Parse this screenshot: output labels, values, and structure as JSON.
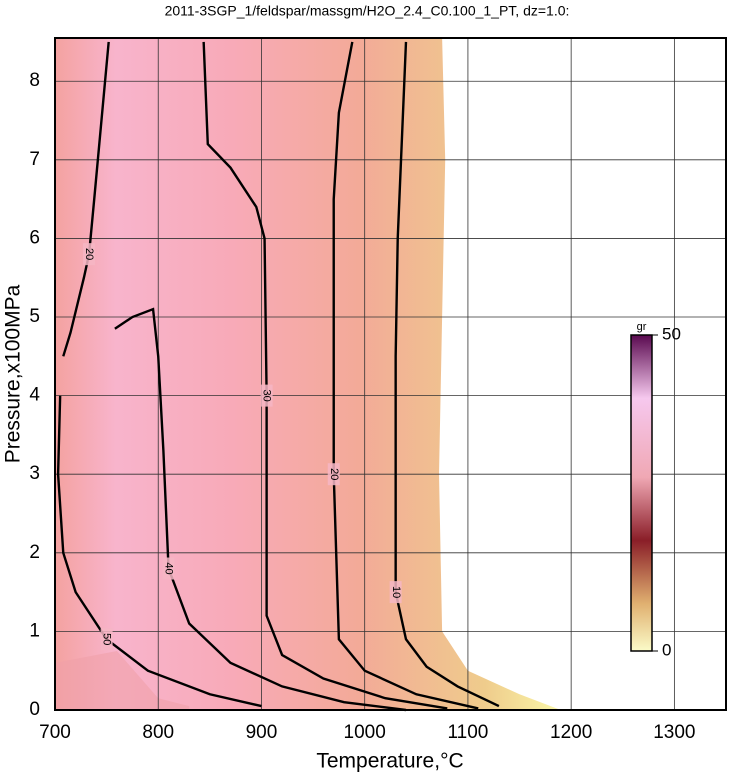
{
  "chart_data": {
    "type": "contour",
    "title": "2011-3SGP_1/feldspar/massgm/H2O_2.4_C0.100_1_PT, dz=1.0:",
    "x_label": "Temperature,°C",
    "y_label": "Pressure,x100MPa",
    "xlim": [
      700,
      1350
    ],
    "ylim": [
      0,
      8.55
    ],
    "xticks": [
      700,
      800,
      900,
      1000,
      1100,
      1200,
      1300
    ],
    "yticks": [
      0,
      1,
      2,
      3,
      4,
      5,
      6,
      7,
      8
    ],
    "grid": true,
    "series": [
      {
        "level": 10,
        "x": [
          1040,
          1032,
          1030,
          1030,
          1030,
          1040,
          1060,
          1090,
          1130
        ],
        "values": [
          8.5,
          6,
          4.5,
          3,
          1.5,
          0.9,
          0.55,
          0.3,
          0.05
        ]
      },
      {
        "level": 20,
        "x": [
          988,
          975,
          970,
          970,
          970,
          975,
          1000,
          1050,
          1110
        ],
        "values": [
          8.5,
          7.6,
          6.5,
          5,
          3,
          0.9,
          0.5,
          0.2,
          0.02
        ]
      },
      {
        "level": 30,
        "x": [
          844,
          848,
          870,
          895,
          903,
          905,
          905,
          920,
          960,
          1020,
          1080
        ],
        "values": [
          8.5,
          7.2,
          6.9,
          6.4,
          6,
          4,
          1.2,
          0.7,
          0.4,
          0.15,
          0.02
        ]
      },
      {
        "level": 40,
        "x": [
          758,
          775,
          795,
          800,
          805,
          810,
          830,
          870,
          920,
          980,
          1040
        ],
        "values": [
          4.85,
          5.0,
          5.1,
          4.5,
          3.3,
          1.8,
          1.1,
          0.6,
          0.3,
          0.1,
          0
        ]
      },
      {
        "level": 20,
        "x": [
          752,
          745,
          738,
          733,
          728,
          715,
          708
        ],
        "values": [
          8.5,
          7.5,
          6.5,
          5.8,
          5.5,
          4.8,
          4.5
        ]
      },
      {
        "level": 50,
        "x": [
          705,
          703,
          708,
          720,
          750,
          790,
          850,
          900
        ],
        "values": [
          4,
          3,
          2,
          1.5,
          0.9,
          0.5,
          0.2,
          0.05
        ]
      }
    ],
    "colorbar": {
      "label": "gr",
      "lim": [
        0,
        50
      ],
      "ticks": [
        0,
        50
      ]
    }
  }
}
